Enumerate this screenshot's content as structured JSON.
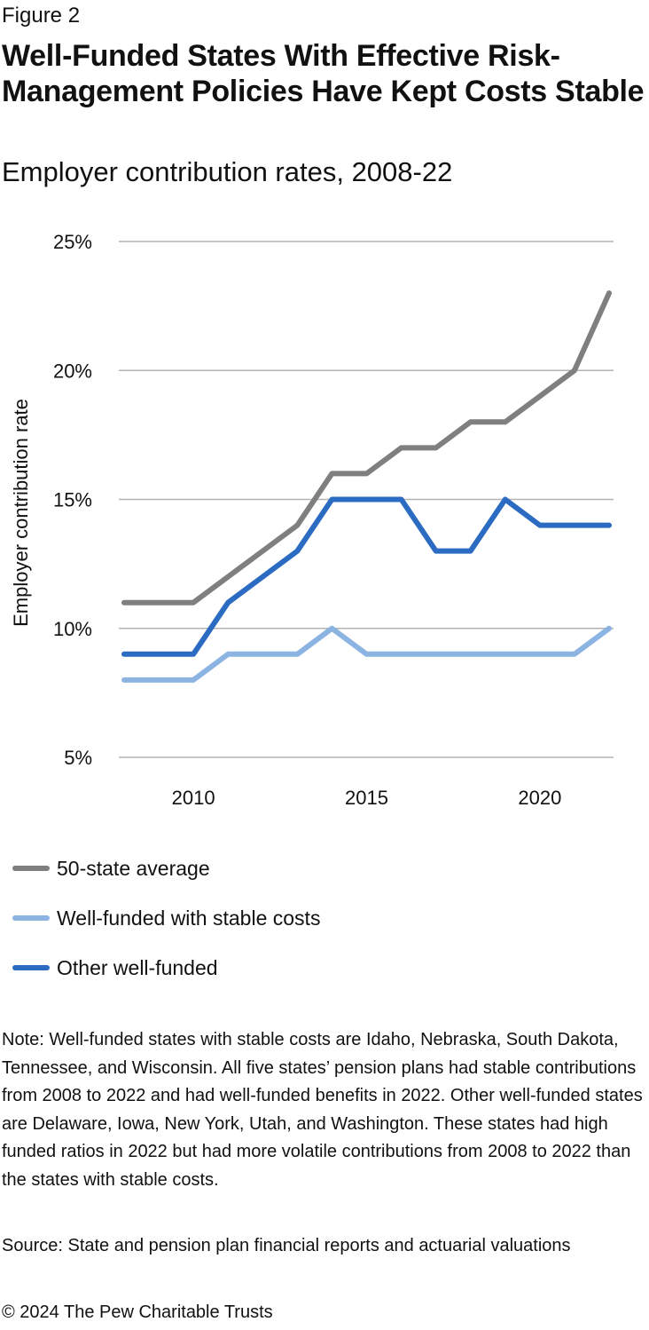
{
  "header": {
    "figure_label": "Figure 2",
    "title": "Well-Funded States With Effective Risk-Management Policies Have Kept Costs Stable",
    "subtitle": "Employer contribution rates, 2008-22"
  },
  "chart_data": {
    "type": "line",
    "title": "Well-Funded States With Effective Risk-Management Policies Have Kept Costs Stable",
    "subtitle": "Employer contribution rates, 2008-22",
    "xlabel": "",
    "ylabel": "Employer contribution rate",
    "x": [
      2008,
      2009,
      2010,
      2011,
      2012,
      2013,
      2014,
      2015,
      2016,
      2017,
      2018,
      2019,
      2020,
      2021,
      2022
    ],
    "xticks": [
      2010,
      2015,
      2020
    ],
    "xlim": [
      2008,
      2022
    ],
    "ylim": [
      5,
      25
    ],
    "yticks": [
      5,
      10,
      15,
      20,
      25
    ],
    "ytick_labels": [
      "5%",
      "10%",
      "15%",
      "20%",
      "25%"
    ],
    "grid": "horizontal",
    "legend_position": "bottom",
    "series": [
      {
        "name": "50-state average",
        "color": "#7f7f7f",
        "values": [
          11,
          11,
          11,
          12,
          13,
          14,
          16,
          16,
          17,
          17,
          18,
          18,
          19,
          20,
          23
        ]
      },
      {
        "name": "Well-funded with stable costs",
        "color": "#8cb4e2",
        "values": [
          8,
          8,
          8,
          9,
          9,
          9,
          10,
          9,
          9,
          9,
          9,
          9,
          9,
          9,
          10
        ]
      },
      {
        "name": "Other well-funded",
        "color": "#2b6cc2",
        "values": [
          9,
          9,
          9,
          11,
          12,
          13,
          15,
          15,
          15,
          13,
          13,
          15,
          14,
          14,
          14
        ]
      }
    ]
  },
  "footer": {
    "note": "Note: Well-funded states with stable costs are Idaho, Nebraska, South Dakota, Tennessee, and Wisconsin. All five states’ pension plans had stable contributions from 2008 to 2022 and had well-funded benefits in 2022. Other well-funded states are Delaware, Iowa, New York, Utah, and Washington. These states had high funded ratios in 2022 but had more volatile contributions from 2008 to 2022 than the states with stable costs.",
    "source": "Source: State and pension plan financial reports and actuarial valuations",
    "copyright": "© 2024 The Pew Charitable Trusts"
  }
}
